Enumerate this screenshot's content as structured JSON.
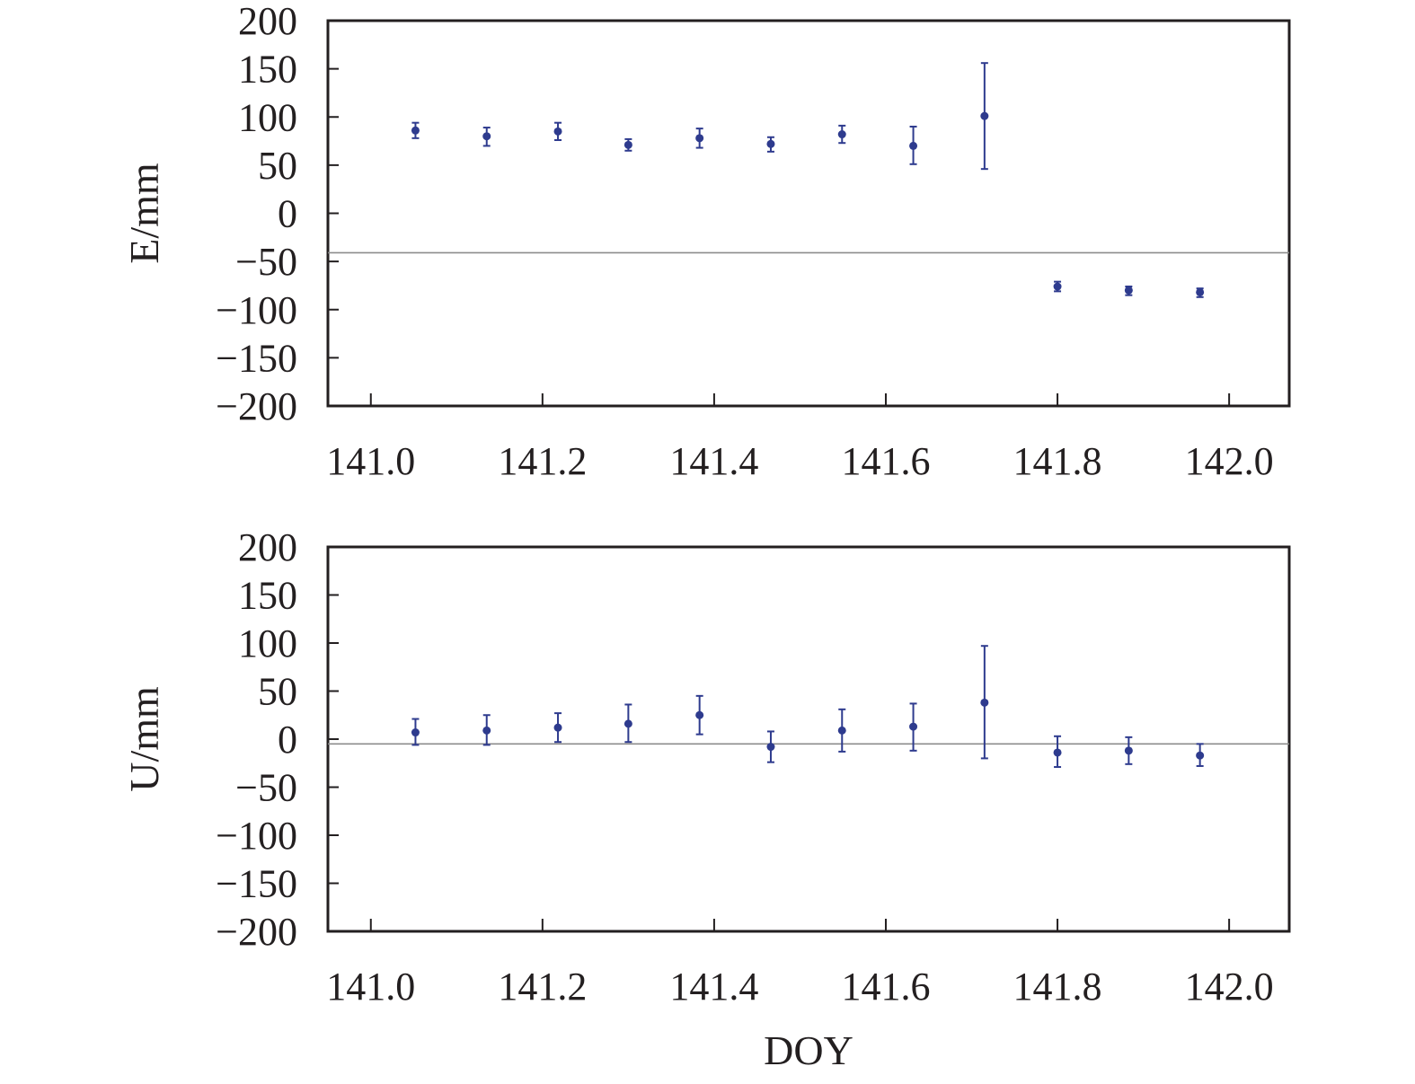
{
  "chart_data": [
    {
      "type": "scatter",
      "ylabel": "E/mm",
      "xlabel": "",
      "xlim": [
        140.95,
        142.07
      ],
      "ylim": [
        -200,
        200
      ],
      "x_ticks": [
        "141.0",
        "141.2",
        "141.4",
        "141.6",
        "141.8",
        "142.0"
      ],
      "y_ticks": [
        "200",
        "150",
        "100",
        "50",
        "0",
        "−50",
        "−100",
        "−150",
        "−200"
      ],
      "reference_line": -41,
      "marker_color": "#2e3b8e",
      "reference_line_color": "#8c8c8c",
      "series": [
        {
          "x": [
            141.052,
            141.135,
            141.218,
            141.3,
            141.383,
            141.466,
            141.549,
            141.632,
            141.715,
            141.8,
            141.883,
            141.966
          ],
          "y": [
            86,
            80,
            85,
            71,
            78,
            72,
            82,
            70,
            101,
            -76,
            -80,
            -82
          ],
          "y_err_high": [
            94,
            89,
            94,
            77,
            88,
            79,
            91,
            90,
            156,
            -71,
            -76,
            -78
          ],
          "y_err_low": [
            78,
            70,
            76,
            65,
            68,
            64,
            73,
            51,
            46,
            -81,
            -85,
            -87
          ]
        }
      ]
    },
    {
      "type": "scatter",
      "ylabel": "U/mm",
      "xlabel": "DOY",
      "xlim": [
        140.95,
        142.07
      ],
      "ylim": [
        -200,
        200
      ],
      "x_ticks": [
        "141.0",
        "141.2",
        "141.4",
        "141.6",
        "141.8",
        "142.0"
      ],
      "y_ticks": [
        "200",
        "150",
        "100",
        "50",
        "0",
        "−50",
        "−100",
        "−150",
        "−200"
      ],
      "reference_line": -5,
      "marker_color": "#2e3b8e",
      "reference_line_color": "#8c8c8c",
      "series": [
        {
          "x": [
            141.052,
            141.135,
            141.218,
            141.3,
            141.383,
            141.466,
            141.549,
            141.632,
            141.715,
            141.8,
            141.883,
            141.966
          ],
          "y": [
            7,
            9,
            12,
            16,
            25,
            -8,
            9,
            13,
            38,
            -14,
            -12,
            -17
          ],
          "y_err_high": [
            21,
            25,
            27,
            36,
            45,
            8,
            31,
            37,
            97,
            3,
            2,
            -5
          ],
          "y_err_low": [
            -6,
            -6,
            -3,
            -3,
            5,
            -24,
            -13,
            -12,
            -20,
            -29,
            -26,
            -28
          ]
        }
      ]
    }
  ]
}
